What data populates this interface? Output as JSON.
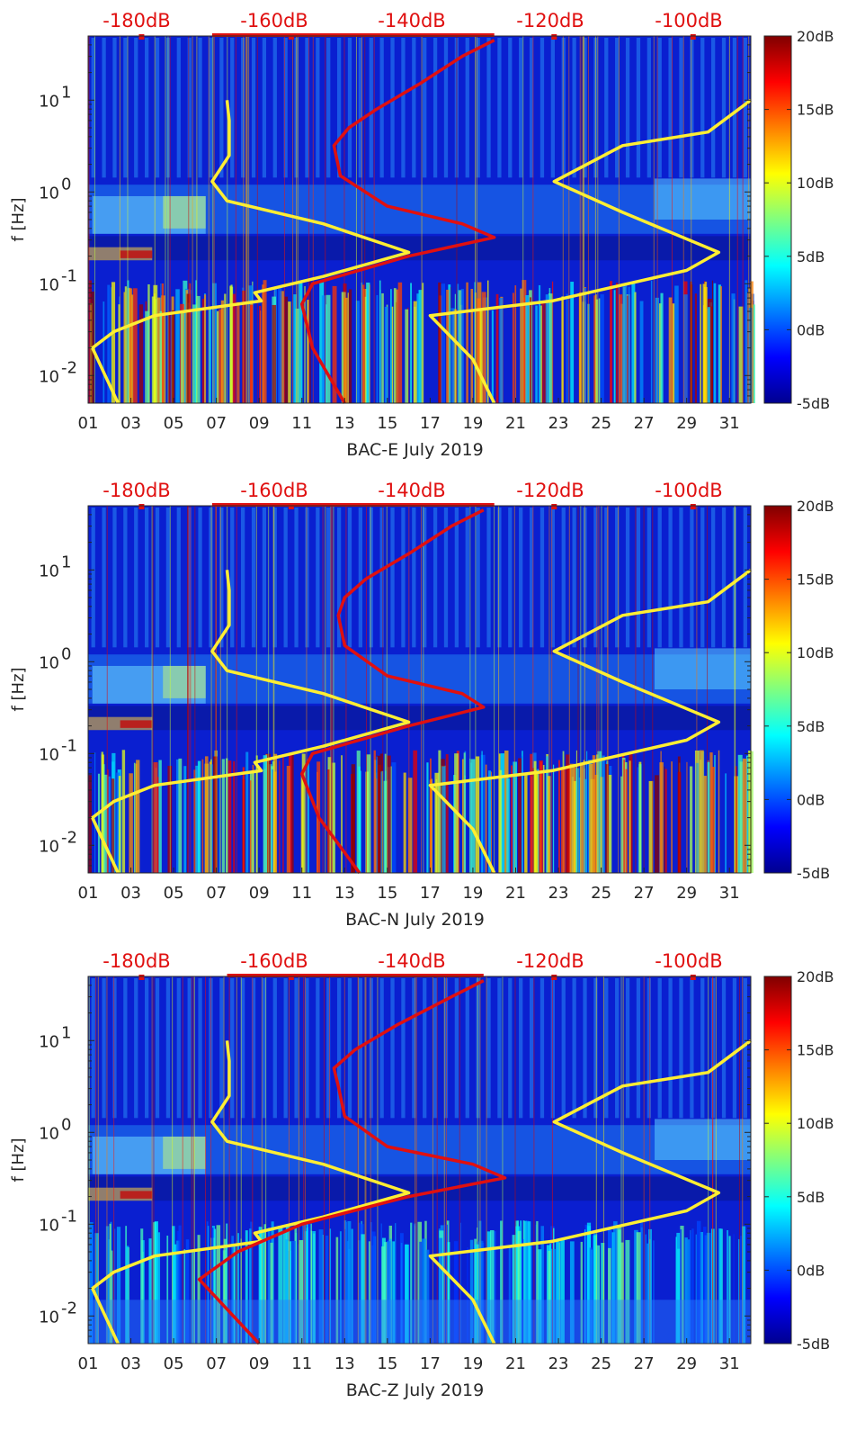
{
  "chart_data": [
    {
      "type": "heatmap",
      "xlabel": "BAC-E July 2019",
      "ylabel": "f [Hz]",
      "x_ticks": [
        "01",
        "03",
        "05",
        "07",
        "09",
        "11",
        "13",
        "15",
        "17",
        "19",
        "21",
        "23",
        "25",
        "27",
        "29",
        "31"
      ],
      "y_ticks": [
        "10^-2",
        "10^-1",
        "10^0",
        "10^1"
      ],
      "top_ticks": [
        "-180dB",
        "-160dB",
        "-140dB",
        "-120dB",
        "-100dB"
      ],
      "colorbar_ticks": [
        "20dB",
        "15dB",
        "10dB",
        "5dB",
        "0dB",
        "-5dB"
      ],
      "colorbar_range": [
        -5,
        20
      ],
      "colormap": "jet",
      "xlim": [
        1,
        32
      ],
      "ylim": [
        0.005,
        50
      ],
      "yscale": "log",
      "series": [
        {
          "color": "#ffee33",
          "x": [
            7.5,
            7.6,
            7.6,
            6.8,
            7.5,
            12,
            16,
            12,
            8.8,
            9.1,
            4.1,
            2.2,
            1.2,
            1.8,
            2.4
          ],
          "y": [
            10,
            6,
            2.5,
            1.3,
            0.8,
            0.45,
            0.22,
            0.12,
            0.08,
            0.065,
            0.045,
            0.03,
            0.02,
            0.01,
            0.005
          ]
        },
        {
          "color": "#ffee33",
          "x": [
            32,
            30,
            26,
            22.8,
            26,
            30.5,
            29,
            22.7,
            17,
            19,
            20
          ],
          "y": [
            10,
            4.5,
            3.2,
            1.3,
            0.6,
            0.22,
            0.14,
            0.065,
            0.045,
            0.015,
            0.005
          ]
        },
        {
          "color": "#e01010",
          "x": [
            20,
            18.5,
            16.5,
            14.5,
            13.2,
            12.5,
            12.8,
            15,
            18.5,
            20,
            16,
            11.5,
            11,
            11.5,
            13
          ],
          "y": [
            45,
            30,
            15,
            8,
            5,
            3.2,
            1.5,
            0.7,
            0.45,
            0.32,
            0.2,
            0.1,
            0.06,
            0.02,
            0.005
          ]
        }
      ]
    },
    {
      "type": "heatmap",
      "xlabel": "BAC-N July 2019",
      "ylabel": "f [Hz]",
      "x_ticks": [
        "01",
        "03",
        "05",
        "07",
        "09",
        "11",
        "13",
        "15",
        "17",
        "19",
        "21",
        "23",
        "25",
        "27",
        "29",
        "31"
      ],
      "y_ticks": [
        "10^-2",
        "10^-1",
        "10^0",
        "10^1"
      ],
      "top_ticks": [
        "-180dB",
        "-160dB",
        "-140dB",
        "-120dB",
        "-100dB"
      ],
      "colorbar_ticks": [
        "20dB",
        "15dB",
        "10dB",
        "5dB",
        "0dB",
        "-5dB"
      ],
      "colorbar_range": [
        -5,
        20
      ],
      "colormap": "jet",
      "xlim": [
        1,
        32
      ],
      "ylim": [
        0.005,
        50
      ],
      "yscale": "log",
      "series": [
        {
          "color": "#ffee33",
          "x": [
            7.5,
            7.6,
            7.6,
            6.8,
            7.5,
            12,
            16,
            12,
            8.8,
            9.1,
            4.1,
            2.2,
            1.2,
            1.8,
            2.4
          ],
          "y": [
            10,
            6,
            2.5,
            1.3,
            0.8,
            0.45,
            0.22,
            0.12,
            0.08,
            0.065,
            0.045,
            0.03,
            0.02,
            0.01,
            0.005
          ]
        },
        {
          "color": "#ffee33",
          "x": [
            32,
            30,
            26,
            22.8,
            26,
            30.5,
            29,
            22.7,
            17,
            19,
            20
          ],
          "y": [
            10,
            4.5,
            3.2,
            1.3,
            0.6,
            0.22,
            0.14,
            0.065,
            0.045,
            0.015,
            0.005
          ]
        },
        {
          "color": "#e01010",
          "x": [
            19.5,
            18,
            16,
            14,
            13,
            12.7,
            13,
            15,
            18.5,
            19.5,
            16,
            11.5,
            11,
            11.8,
            13.7
          ],
          "y": [
            45,
            30,
            15,
            8,
            5,
            3.2,
            1.5,
            0.7,
            0.45,
            0.32,
            0.2,
            0.1,
            0.06,
            0.02,
            0.005
          ]
        }
      ]
    },
    {
      "type": "heatmap",
      "xlabel": "BAC-Z July 2019",
      "ylabel": "f [Hz]",
      "x_ticks": [
        "01",
        "03",
        "05",
        "07",
        "09",
        "11",
        "13",
        "15",
        "17",
        "19",
        "21",
        "23",
        "25",
        "27",
        "29",
        "31"
      ],
      "y_ticks": [
        "10^-2",
        "10^-1",
        "10^0",
        "10^1"
      ],
      "top_ticks": [
        "-180dB",
        "-160dB",
        "-140dB",
        "-120dB",
        "-100dB"
      ],
      "colorbar_ticks": [
        "20dB",
        "15dB",
        "10dB",
        "5dB",
        "0dB",
        "-5dB"
      ],
      "colorbar_range": [
        -5,
        20
      ],
      "colormap": "jet",
      "xlim": [
        1,
        32
      ],
      "ylim": [
        0.005,
        50
      ],
      "yscale": "log",
      "series": [
        {
          "color": "#ffee33",
          "x": [
            7.5,
            7.6,
            7.6,
            6.8,
            7.5,
            12,
            16,
            12,
            8.8,
            9.1,
            4.1,
            2.2,
            1.2,
            1.8,
            2.4
          ],
          "y": [
            10,
            6,
            2.5,
            1.3,
            0.8,
            0.45,
            0.22,
            0.12,
            0.08,
            0.065,
            0.045,
            0.03,
            0.02,
            0.01,
            0.005
          ]
        },
        {
          "color": "#ffee33",
          "x": [
            32,
            30,
            26,
            22.8,
            26,
            30.5,
            29,
            22.7,
            17,
            19,
            20
          ],
          "y": [
            10,
            4.5,
            3.2,
            1.3,
            0.6,
            0.22,
            0.14,
            0.065,
            0.045,
            0.015,
            0.005
          ]
        },
        {
          "color": "#e01010",
          "x": [
            19.5,
            18,
            15.5,
            13.5,
            12.5,
            12.7,
            13,
            15,
            19,
            20.5,
            16,
            11,
            8,
            6.2,
            9
          ],
          "y": [
            45,
            30,
            15,
            8,
            5,
            3.2,
            1.5,
            0.7,
            0.45,
            0.32,
            0.2,
            0.1,
            0.05,
            0.025,
            0.005
          ]
        }
      ]
    }
  ]
}
